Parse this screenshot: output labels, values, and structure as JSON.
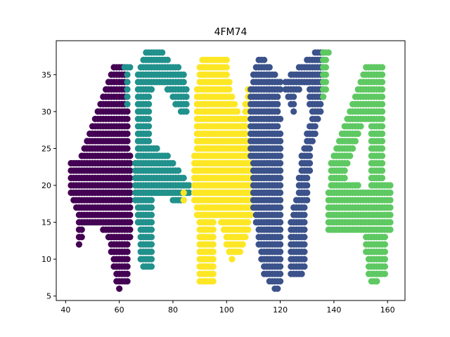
{
  "chart_data": {
    "type": "scatter",
    "title": "4FM74",
    "xlabel": "",
    "ylabel": "",
    "xlim": [
      36.5,
      166.5
    ],
    "ylim": [
      4.4,
      39.6
    ],
    "xticks": [
      40,
      60,
      80,
      100,
      120,
      140,
      160
    ],
    "yticks": [
      5,
      10,
      15,
      20,
      25,
      30,
      35
    ],
    "grid": false,
    "legend": "none",
    "series": [
      {
        "color": "#440154",
        "rows": [
          [
            36,
            58,
            62
          ],
          [
            35,
            57,
            62
          ],
          [
            34,
            56,
            62
          ],
          [
            33,
            55,
            62
          ],
          [
            32,
            54,
            62
          ],
          [
            31,
            53,
            62
          ],
          [
            30,
            52,
            63
          ],
          [
            29,
            51,
            63
          ],
          [
            28,
            50,
            63
          ],
          [
            27,
            49,
            63
          ],
          [
            26,
            48,
            63
          ],
          [
            25,
            47,
            63
          ],
          [
            24,
            46,
            64
          ],
          [
            23,
            42,
            64
          ],
          [
            22,
            42,
            64
          ],
          [
            21,
            42,
            64
          ],
          [
            20,
            42,
            64
          ],
          [
            19,
            42,
            64
          ],
          [
            18,
            43,
            64
          ],
          [
            17,
            44,
            64
          ],
          [
            16,
            45,
            64
          ],
          [
            15,
            45,
            64
          ],
          [
            14,
            45,
            46
          ],
          [
            14,
            54,
            64
          ],
          [
            13,
            45,
            46
          ],
          [
            13,
            56,
            64
          ],
          [
            12,
            45,
            45
          ],
          [
            12,
            57,
            63
          ],
          [
            11,
            57,
            63
          ],
          [
            10,
            58,
            63
          ],
          [
            9,
            58,
            63
          ],
          [
            8,
            59,
            63
          ],
          [
            7,
            59,
            63
          ],
          [
            6,
            60,
            60
          ]
        ]
      },
      {
        "color": "#21918c",
        "rows": [
          [
            38,
            70,
            76
          ],
          [
            37,
            69,
            78
          ],
          [
            36,
            68,
            82
          ],
          [
            35,
            67,
            84
          ],
          [
            34,
            67,
            84
          ],
          [
            33,
            67,
            72
          ],
          [
            33,
            78,
            85
          ],
          [
            32,
            67,
            71
          ],
          [
            32,
            80,
            85
          ],
          [
            31,
            67,
            71
          ],
          [
            31,
            81,
            85
          ],
          [
            30,
            67,
            71
          ],
          [
            30,
            83,
            85
          ],
          [
            29,
            67,
            71
          ],
          [
            28,
            67,
            71
          ],
          [
            27,
            67,
            71
          ],
          [
            26,
            67,
            71
          ],
          [
            25,
            67,
            74
          ],
          [
            24,
            67,
            78
          ],
          [
            23,
            66,
            80
          ],
          [
            22,
            66,
            82
          ],
          [
            21,
            66,
            84
          ],
          [
            20,
            66,
            86
          ],
          [
            19,
            66,
            86
          ],
          [
            18,
            66,
            72
          ],
          [
            18,
            80,
            84
          ],
          [
            17,
            67,
            72
          ],
          [
            16,
            67,
            72
          ],
          [
            15,
            67,
            72
          ],
          [
            14,
            68,
            72
          ],
          [
            13,
            68,
            72
          ],
          [
            12,
            68,
            72
          ],
          [
            11,
            68,
            72
          ],
          [
            10,
            68,
            72
          ],
          [
            9,
            69,
            72
          ],
          [
            36,
            62,
            64
          ],
          [
            35,
            63,
            63
          ],
          [
            34,
            63,
            63
          ],
          [
            33,
            63,
            63
          ],
          [
            32,
            63,
            63
          ],
          [
            31,
            63,
            63
          ]
        ]
      },
      {
        "color": "#fde725",
        "rows": [
          [
            37,
            91,
            100
          ],
          [
            36,
            90,
            100
          ],
          [
            35,
            90,
            100
          ],
          [
            34,
            90,
            101
          ],
          [
            33,
            89,
            101
          ],
          [
            32,
            89,
            102
          ],
          [
            31,
            89,
            103
          ],
          [
            30,
            89,
            104
          ],
          [
            29,
            89,
            105
          ],
          [
            28,
            89,
            106
          ],
          [
            27,
            89,
            107
          ],
          [
            26,
            89,
            108
          ],
          [
            25,
            89,
            109
          ],
          [
            24,
            88,
            109
          ],
          [
            23,
            88,
            109
          ],
          [
            22,
            88,
            109
          ],
          [
            21,
            88,
            109
          ],
          [
            20,
            88,
            109
          ],
          [
            19,
            88,
            109
          ],
          [
            18,
            88,
            109
          ],
          [
            17,
            89,
            109
          ],
          [
            16,
            89,
            109
          ],
          [
            15,
            90,
            95
          ],
          [
            15,
            98,
            108
          ],
          [
            14,
            90,
            95
          ],
          [
            14,
            99,
            108
          ],
          [
            13,
            90,
            95
          ],
          [
            13,
            100,
            107
          ],
          [
            12,
            90,
            95
          ],
          [
            12,
            100,
            106
          ],
          [
            11,
            90,
            95
          ],
          [
            11,
            101,
            105
          ],
          [
            10,
            90,
            95
          ],
          [
            10,
            102,
            102
          ],
          [
            9,
            90,
            95
          ],
          [
            8,
            90,
            95
          ],
          [
            7,
            90,
            95
          ],
          [
            19,
            84,
            84
          ],
          [
            18,
            84,
            84
          ],
          [
            33,
            108,
            109
          ],
          [
            32,
            108,
            109
          ],
          [
            31,
            107,
            108
          ],
          [
            30,
            107,
            108
          ],
          [
            29,
            106,
            107
          ],
          [
            28,
            106,
            107
          ],
          [
            27,
            106,
            107
          ]
        ]
      },
      {
        "color": "#3b528b",
        "rows": [
          [
            38,
            133,
            136
          ],
          [
            37,
            112,
            114
          ],
          [
            37,
            130,
            136
          ],
          [
            36,
            111,
            116
          ],
          [
            36,
            127,
            136
          ],
          [
            35,
            110,
            118
          ],
          [
            35,
            124,
            136
          ],
          [
            34,
            110,
            120
          ],
          [
            34,
            122,
            136
          ],
          [
            33,
            109,
            120
          ],
          [
            33,
            122,
            127
          ],
          [
            33,
            131,
            136
          ],
          [
            32,
            109,
            119
          ],
          [
            32,
            123,
            125
          ],
          [
            32,
            131,
            136
          ],
          [
            31,
            109,
            119
          ],
          [
            31,
            124,
            125
          ],
          [
            31,
            131,
            135
          ],
          [
            30,
            109,
            119
          ],
          [
            30,
            125,
            125
          ],
          [
            30,
            132,
            135
          ],
          [
            29,
            109,
            120
          ],
          [
            29,
            132,
            134
          ],
          [
            28,
            109,
            119
          ],
          [
            28,
            131,
            133
          ],
          [
            27,
            109,
            120
          ],
          [
            27,
            130,
            133
          ],
          [
            26,
            109,
            120
          ],
          [
            26,
            130,
            132
          ],
          [
            25,
            109,
            120
          ],
          [
            25,
            129,
            131
          ],
          [
            24,
            109,
            120
          ],
          [
            24,
            128,
            131
          ],
          [
            23,
            110,
            120
          ],
          [
            23,
            128,
            131
          ],
          [
            22,
            110,
            120
          ],
          [
            22,
            128,
            131
          ],
          [
            21,
            110,
            120
          ],
          [
            21,
            127,
            130
          ],
          [
            20,
            110,
            120
          ],
          [
            20,
            127,
            130
          ],
          [
            19,
            110,
            120
          ],
          [
            19,
            127,
            130
          ],
          [
            18,
            110,
            120
          ],
          [
            18,
            126,
            130
          ],
          [
            17,
            110,
            120
          ],
          [
            17,
            125,
            129
          ],
          [
            16,
            111,
            120
          ],
          [
            16,
            125,
            129
          ],
          [
            15,
            111,
            120
          ],
          [
            15,
            124,
            129
          ],
          [
            14,
            112,
            120
          ],
          [
            14,
            124,
            129
          ],
          [
            13,
            112,
            120
          ],
          [
            13,
            124,
            129
          ],
          [
            12,
            112,
            120
          ],
          [
            12,
            124,
            129
          ],
          [
            11,
            113,
            120
          ],
          [
            11,
            124,
            129
          ],
          [
            10,
            113,
            120
          ],
          [
            10,
            124,
            129
          ],
          [
            9,
            114,
            120
          ],
          [
            9,
            124,
            129
          ],
          [
            8,
            114,
            120
          ],
          [
            8,
            124,
            128
          ],
          [
            7,
            116,
            120
          ],
          [
            6,
            118,
            119
          ]
        ]
      },
      {
        "color": "#5ec962",
        "rows": [
          [
            38,
            136,
            138
          ],
          [
            37,
            136,
            137
          ],
          [
            36,
            136,
            137
          ],
          [
            35,
            136,
            137
          ],
          [
            34,
            136,
            137
          ],
          [
            33,
            136,
            137
          ],
          [
            32,
            136,
            136
          ],
          [
            36,
            152,
            158
          ],
          [
            35,
            151,
            158
          ],
          [
            34,
            150,
            158
          ],
          [
            33,
            149,
            158
          ],
          [
            32,
            148,
            158
          ],
          [
            31,
            147,
            158
          ],
          [
            30,
            146,
            158
          ],
          [
            29,
            145,
            158
          ],
          [
            28,
            144,
            150
          ],
          [
            28,
            154,
            158
          ],
          [
            27,
            143,
            149
          ],
          [
            27,
            154,
            158
          ],
          [
            26,
            142,
            148
          ],
          [
            26,
            154,
            158
          ],
          [
            25,
            141,
            147
          ],
          [
            25,
            154,
            158
          ],
          [
            24,
            140,
            146
          ],
          [
            24,
            154,
            158
          ],
          [
            23,
            139,
            145
          ],
          [
            23,
            154,
            158
          ],
          [
            22,
            139,
            144
          ],
          [
            22,
            154,
            158
          ],
          [
            21,
            139,
            144
          ],
          [
            21,
            154,
            158
          ],
          [
            20,
            139,
            149
          ],
          [
            20,
            154,
            161
          ],
          [
            19,
            138,
            161
          ],
          [
            18,
            138,
            161
          ],
          [
            17,
            138,
            161
          ],
          [
            16,
            138,
            161
          ],
          [
            15,
            138,
            161
          ],
          [
            14,
            138,
            161
          ],
          [
            13,
            152,
            159
          ],
          [
            12,
            152,
            159
          ],
          [
            11,
            152,
            159
          ],
          [
            10,
            153,
            159
          ],
          [
            9,
            153,
            159
          ],
          [
            8,
            153,
            159
          ],
          [
            7,
            154,
            156
          ]
        ]
      }
    ]
  }
}
